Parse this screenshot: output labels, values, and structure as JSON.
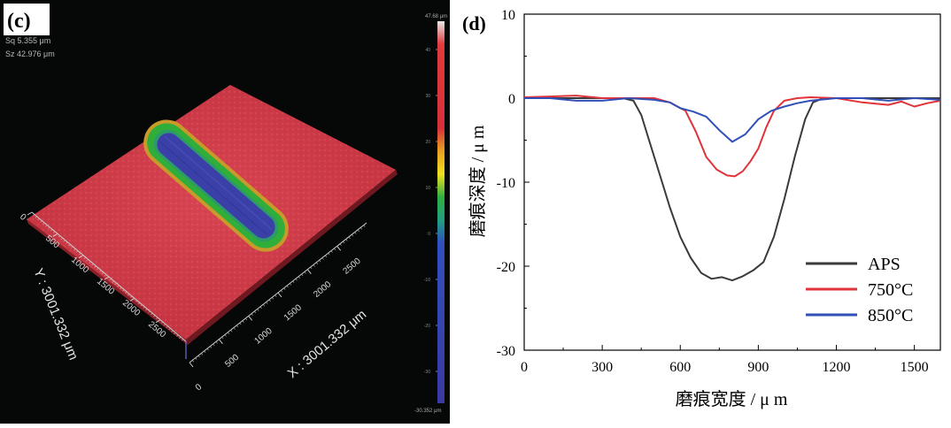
{
  "panel_c": {
    "label": "(c)",
    "info_line1": "Sq 5.355 μm",
    "info_line2": "Sz 42.976 μm",
    "colorbar_top": "47.68 μm",
    "colorbar_bottom": "-30.352 μm",
    "colorbar_ticks": [
      "40",
      "30",
      "20",
      "10",
      "0",
      "-10",
      "-20",
      "-30"
    ],
    "x_axis_title": "X : 3001.332 μm",
    "y_axis_title": "Y : 3001.332 μm",
    "x_ticks": [
      "0",
      "500",
      "1000",
      "1500",
      "2000",
      "2500"
    ],
    "y_ticks": [
      "0",
      "500",
      "1000",
      "1500",
      "2000",
      "2500"
    ],
    "colors": {
      "surface": "#d23a48",
      "track_mid": "#27a845",
      "track_core": "#3b3fa8",
      "background": "#050807"
    }
  },
  "panel_d": {
    "label": "(d)",
    "colors": {
      "APS": "#3a3a3a",
      "750°C": "#e0333a",
      "850°C": "#3050b8"
    }
  },
  "chart_data": {
    "type": "line",
    "title": "",
    "xlabel": "磨痕宽度 / μ m",
    "ylabel": "磨痕深度 / μ m",
    "xlim": [
      0,
      1600
    ],
    "ylim": [
      -30,
      10
    ],
    "xticks": [
      0,
      300,
      600,
      900,
      1200,
      1500
    ],
    "yticks": [
      10,
      0,
      -10,
      -20,
      -30
    ],
    "legend_position": "bottom-right",
    "grid": false,
    "series": [
      {
        "name": "APS",
        "x": [
          0,
          100,
          200,
          300,
          380,
          420,
          450,
          480,
          520,
          560,
          600,
          640,
          680,
          720,
          760,
          800,
          840,
          880,
          920,
          960,
          1000,
          1040,
          1080,
          1110,
          1150,
          1200,
          1300,
          1400,
          1500,
          1600
        ],
        "y": [
          0,
          0,
          0,
          0,
          0,
          -0.3,
          -2,
          -5,
          -9,
          -13,
          -16.5,
          -19,
          -20.8,
          -21.5,
          -21.3,
          -21.7,
          -21.2,
          -20.5,
          -19.5,
          -16.5,
          -12,
          -7,
          -2.5,
          -0.5,
          0,
          0,
          0,
          0,
          0,
          0
        ]
      },
      {
        "name": "750°C",
        "x": [
          0,
          100,
          200,
          300,
          400,
          500,
          560,
          620,
          660,
          700,
          740,
          780,
          810,
          840,
          870,
          900,
          930,
          960,
          1000,
          1050,
          1100,
          1200,
          1300,
          1400,
          1450,
          1500,
          1550,
          1600
        ],
        "y": [
          0.1,
          0.2,
          0.3,
          0,
          0,
          0,
          -0.5,
          -1.5,
          -4,
          -7,
          -8.5,
          -9.2,
          -9.3,
          -8.7,
          -7.5,
          -6,
          -3.5,
          -1.5,
          -0.3,
          0,
          0.1,
          0,
          -0.5,
          -0.8,
          -0.4,
          -1,
          -0.6,
          -0.3
        ]
      },
      {
        "name": "850°C",
        "x": [
          0,
          100,
          200,
          300,
          400,
          500,
          560,
          600,
          650,
          700,
          750,
          800,
          850,
          900,
          950,
          1000,
          1050,
          1100,
          1200,
          1300,
          1400,
          1500,
          1600
        ],
        "y": [
          0,
          0,
          -0.3,
          -0.3,
          0,
          -0.2,
          -0.5,
          -1.2,
          -1.6,
          -2.2,
          -3.8,
          -5.2,
          -4.3,
          -2.5,
          -1.5,
          -1,
          -0.6,
          -0.3,
          0,
          0,
          -0.3,
          0,
          -0.2
        ]
      }
    ]
  }
}
